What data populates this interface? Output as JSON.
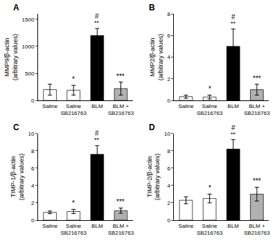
{
  "chart_data": [
    {
      "type": "bar",
      "title": "A",
      "ylabel": "MMP9/β-actin\n(arbitrary values)",
      "categories": [
        "Saline",
        "Saline\nSB216763",
        "BLM",
        "BLM +\nSB216763"
      ],
      "values": [
        200,
        190,
        1200,
        220
      ],
      "errors": [
        100,
        90,
        130,
        120
      ],
      "colors": [
        "white",
        "white",
        "black",
        "#b0b0b0"
      ],
      "annotations": [
        [],
        [
          "*"
        ],
        [
          "#",
          "**"
        ],
        [
          "***"
        ]
      ],
      "ylim": [
        0,
        1600
      ],
      "yticks": [
        0,
        500,
        1000,
        1500
      ],
      "grid": false
    },
    {
      "type": "bar",
      "title": "B",
      "ylabel": "MMP2/β-actin\n(arbitrary values)",
      "categories": [
        "Saline",
        "Saline\nSB216763",
        "BLM",
        "BLM +\nSB216763"
      ],
      "values": [
        0.35,
        0.32,
        5.0,
        1.0
      ],
      "errors": [
        0.15,
        0.18,
        1.6,
        0.5
      ],
      "colors": [
        "white",
        "white",
        "black",
        "#b0b0b0"
      ],
      "annotations": [
        [],
        [
          "*"
        ],
        [
          "#",
          "**"
        ],
        [
          "***"
        ]
      ],
      "ylim": [
        0,
        8
      ],
      "yticks": [
        0,
        2,
        4,
        6,
        8
      ],
      "grid": false
    },
    {
      "type": "bar",
      "title": "C",
      "ylabel": "TIMP-1/β-actin\n(arbitrary values)",
      "categories": [
        "Saline",
        "Saline\nSB216763",
        "BLM",
        "BLM +\nSB216763"
      ],
      "values": [
        0.9,
        1.0,
        7.6,
        1.1
      ],
      "errors": [
        0.15,
        0.25,
        1.0,
        0.3
      ],
      "colors": [
        "white",
        "white",
        "black",
        "#b0b0b0"
      ],
      "annotations": [
        [],
        [
          "*"
        ],
        [
          "#",
          "**"
        ],
        [
          "***"
        ]
      ],
      "ylim": [
        0,
        10
      ],
      "yticks": [
        0,
        2,
        4,
        6,
        8,
        10
      ],
      "grid": false
    },
    {
      "type": "bar",
      "title": "D",
      "ylabel": "TIMP-2/β-actin\n(arbitrary values)",
      "categories": [
        "Saline",
        "Saline\nSB216763",
        "BLM",
        "BLM +\nSB216763"
      ],
      "values": [
        2.3,
        2.5,
        8.2,
        3.0
      ],
      "errors": [
        0.4,
        0.5,
        1.1,
        0.8
      ],
      "colors": [
        "white",
        "white",
        "black",
        "#b0b0b0"
      ],
      "annotations": [
        [],
        [
          "*"
        ],
        [
          "#",
          "**"
        ],
        [
          "***"
        ]
      ],
      "ylim": [
        0,
        10
      ],
      "yticks": [
        0,
        2,
        4,
        6,
        8,
        10
      ],
      "grid": false
    }
  ]
}
